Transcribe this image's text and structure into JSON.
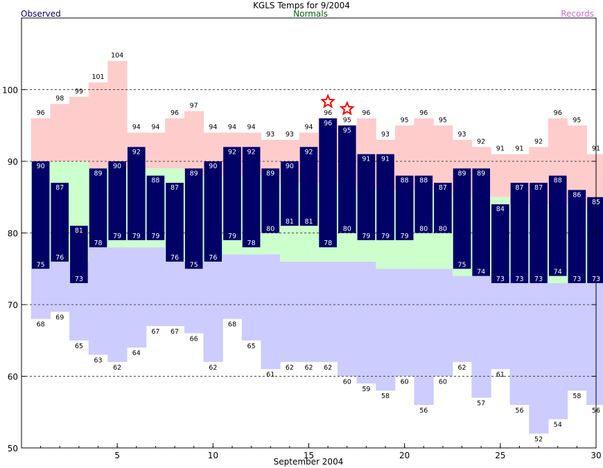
{
  "title": "KGLS Temps for 9/2004",
  "legend": {
    "observed": "Observed",
    "normals": "Normals",
    "records": "Records"
  },
  "colors": {
    "observed": "#000066",
    "normals_fill": "#ccffcc",
    "record_high_fill": "#ffcccc",
    "record_low_fill": "#ccccff",
    "normals_text": "#006600",
    "records_text": "#cc66cc",
    "observed_label_text": "#ffffff",
    "star": "#ff0000"
  },
  "chart_data": {
    "type": "bar",
    "xlabel": "September 2004",
    "xlim": [
      0.5,
      30.5
    ],
    "ylim": [
      50,
      110
    ],
    "x_ticks": [
      5,
      10,
      15,
      20,
      25,
      30
    ],
    "y_ticks": [
      50,
      60,
      70,
      80,
      90,
      100
    ],
    "gridlines_dashed": [
      60,
      70,
      80,
      90,
      100
    ],
    "days": [
      1,
      2,
      3,
      4,
      5,
      6,
      7,
      8,
      9,
      10,
      11,
      12,
      13,
      14,
      15,
      16,
      17,
      18,
      19,
      20,
      21,
      22,
      23,
      24,
      25,
      26,
      27,
      28,
      29,
      30
    ],
    "series": [
      {
        "name": "Observed",
        "key": "obs_high",
        "values": [
          90,
          87,
          81,
          89,
          90,
          92,
          88,
          87,
          89,
          90,
          92,
          92,
          89,
          90,
          92,
          96,
          95,
          91,
          91,
          88,
          88,
          87,
          89,
          89,
          84,
          87,
          87,
          88,
          86,
          85
        ]
      },
      {
        "name": "Observed",
        "key": "obs_low",
        "values": [
          75,
          76,
          73,
          78,
          79,
          79,
          79,
          76,
          75,
          76,
          79,
          78,
          80,
          81,
          81,
          78,
          80,
          79,
          79,
          79,
          80,
          80,
          75,
          74,
          73,
          73,
          73,
          74,
          73,
          73
        ]
      },
      {
        "name": "Normals",
        "key": "normal_high",
        "values": [
          90,
          90,
          90,
          89,
          89,
          89,
          89,
          89,
          88,
          88,
          88,
          88,
          88,
          87,
          87,
          87,
          87,
          86,
          86,
          86,
          86,
          86,
          85,
          85,
          85,
          84,
          84,
          84,
          84,
          83
        ]
      },
      {
        "name": "Normals",
        "key": "normal_low",
        "values": [
          75,
          76,
          76,
          78,
          78,
          78,
          78,
          76,
          76,
          76,
          77,
          77,
          77,
          76,
          76,
          76,
          76,
          76,
          75,
          75,
          75,
          75,
          74,
          74,
          74,
          73,
          73,
          73,
          73,
          73
        ]
      },
      {
        "name": "Records",
        "key": "record_high",
        "values": [
          96,
          98,
          99,
          101,
          104,
          94,
          94,
          96,
          97,
          94,
          94,
          94,
          93,
          93,
          94,
          96,
          95,
          96,
          93,
          95,
          96,
          95,
          93,
          92,
          91,
          91,
          92,
          96,
          95,
          91
        ]
      },
      {
        "name": "Records",
        "key": "record_low",
        "values": [
          68,
          69,
          65,
          63,
          62,
          64,
          67,
          67,
          66,
          62,
          68,
          65,
          61,
          62,
          62,
          62,
          60,
          59,
          58,
          60,
          56,
          60,
          62,
          57,
          61,
          56,
          52,
          54,
          58,
          56
        ]
      }
    ],
    "record_high_star_days": [
      16,
      17
    ]
  }
}
